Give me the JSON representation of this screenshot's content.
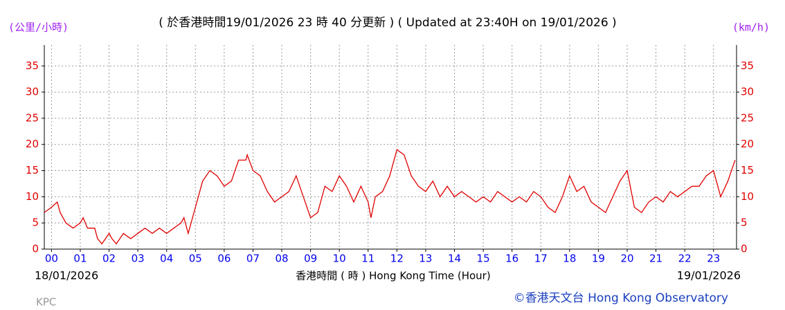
{
  "chart_data": {
    "type": "line",
    "title": "( 於香港時間19/01/2026 23 時 40 分更新 ) ( Updated at 23:40H on 19/01/2026 )",
    "y_label": "(公里/小時)",
    "y2_label": "(km/h)",
    "x_label": "香港時間 ( 時 ) Hong Kong Time (Hour)",
    "start_date": "18/01/2026",
    "end_date": "19/01/2026",
    "station": "KPC",
    "credit": "©香港天文台 Hong Kong Observatory",
    "color": "#e00000",
    "grid": true,
    "xlim": [
      -0.25,
      23.8
    ],
    "ylim": [
      0,
      39
    ],
    "yticks": [
      0,
      5,
      10,
      15,
      20,
      25,
      30,
      35
    ],
    "xticks": [
      {
        "value": 0,
        "label": "00"
      },
      {
        "value": 1,
        "label": "01"
      },
      {
        "value": 2,
        "label": "02"
      },
      {
        "value": 3,
        "label": "03"
      },
      {
        "value": 4,
        "label": "04"
      },
      {
        "value": 5,
        "label": "05"
      },
      {
        "value": 6,
        "label": "06"
      },
      {
        "value": 7,
        "label": "07"
      },
      {
        "value": 8,
        "label": "08"
      },
      {
        "value": 9,
        "label": "09"
      },
      {
        "value": 10,
        "label": "10"
      },
      {
        "value": 11,
        "label": "11"
      },
      {
        "value": 12,
        "label": "12"
      },
      {
        "value": 13,
        "label": "13"
      },
      {
        "value": 14,
        "label": "14"
      },
      {
        "value": 15,
        "label": "15"
      },
      {
        "value": 16,
        "label": "16"
      },
      {
        "value": 17,
        "label": "17"
      },
      {
        "value": 18,
        "label": "18"
      },
      {
        "value": 19,
        "label": "19"
      },
      {
        "value": 20,
        "label": "20"
      },
      {
        "value": 21,
        "label": "21"
      },
      {
        "value": 22,
        "label": "22"
      },
      {
        "value": 23,
        "label": "23"
      }
    ],
    "x": [
      -0.25,
      0,
      0.2,
      0.3,
      0.5,
      0.75,
      1,
      1.1,
      1.25,
      1.5,
      1.6,
      1.75,
      2,
      2.1,
      2.25,
      2.5,
      2.75,
      3,
      3.25,
      3.5,
      3.75,
      4,
      4.25,
      4.5,
      4.6,
      4.75,
      5,
      5.1,
      5.25,
      5.5,
      5.75,
      6,
      6.25,
      6.5,
      6.75,
      6.8,
      7,
      7.25,
      7.5,
      7.75,
      8,
      8.25,
      8.5,
      8.75,
      9,
      9.25,
      9.5,
      9.75,
      10,
      10.25,
      10.5,
      10.75,
      11,
      11.1,
      11.25,
      11.5,
      11.75,
      12,
      12.25,
      12.5,
      12.75,
      13,
      13.25,
      13.5,
      13.75,
      14,
      14.25,
      14.5,
      14.75,
      15,
      15.25,
      15.5,
      15.75,
      16,
      16.25,
      16.5,
      16.75,
      17,
      17.25,
      17.5,
      17.75,
      18,
      18.25,
      18.5,
      18.75,
      19,
      19.25,
      19.5,
      19.75,
      20,
      20.25,
      20.5,
      20.75,
      21,
      21.25,
      21.5,
      21.75,
      22,
      22.25,
      22.5,
      22.75,
      23,
      23.25,
      23.5,
      23.75
    ],
    "values": [
      7,
      8,
      9,
      7,
      5,
      4,
      5,
      6,
      4,
      4,
      2,
      1,
      3,
      2,
      1,
      3,
      2,
      3,
      4,
      3,
      4,
      3,
      4,
      5,
      6,
      3,
      8,
      10,
      13,
      15,
      14,
      12,
      13,
      17,
      17,
      18,
      15,
      14,
      11,
      9,
      10,
      11,
      14,
      10,
      6,
      7,
      12,
      11,
      14,
      12,
      9,
      12,
      9,
      6,
      10,
      11,
      14,
      19,
      18,
      14,
      12,
      11,
      13,
      10,
      12,
      10,
      11,
      10,
      9,
      10,
      9,
      11,
      10,
      9,
      10,
      9,
      11,
      10,
      8,
      7,
      10,
      14,
      11,
      12,
      9,
      8,
      7,
      10,
      13,
      15,
      8,
      7,
      9,
      10,
      9,
      11,
      10,
      11,
      12,
      12,
      14,
      15,
      10,
      13,
      17
    ]
  }
}
